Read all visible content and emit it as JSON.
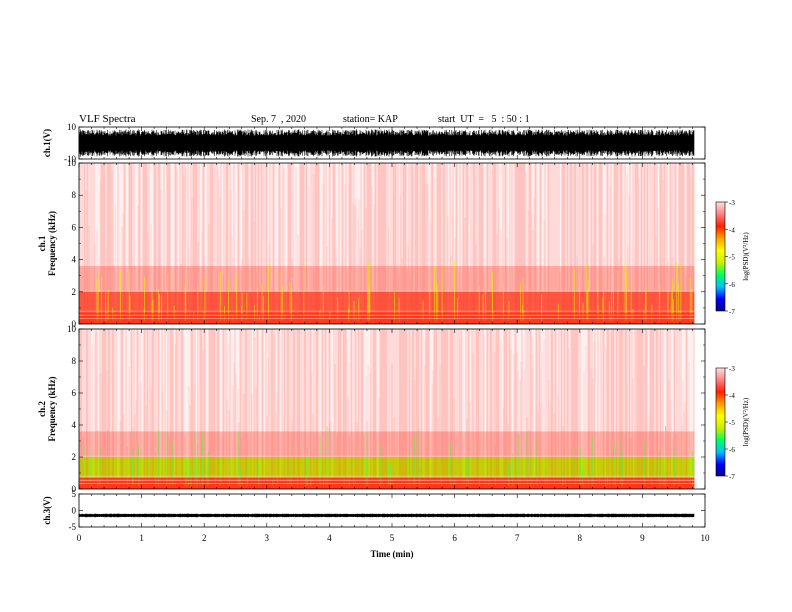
{
  "header": {
    "title": "VLF Spectra",
    "date": "Sep. 7  , 2020",
    "station": "station= KAP",
    "start": "start  UT  =   5  : 50 : 1"
  },
  "chart_data": [
    {
      "type": "line",
      "panel": "ch1-waveform",
      "ylabel": "ch.1(V)",
      "ylim": [
        -10,
        10
      ],
      "yticks": [
        10,
        -10
      ],
      "xlim": [
        0,
        10
      ],
      "x_end": 9.83,
      "description_of_values": "dense high-amplitude noise waveform, mostly within ±8 V"
    },
    {
      "type": "heatmap",
      "panel": "ch1-spectrogram",
      "ylabel": "ch.1\nFrequency  (kHz)",
      "ylim": [
        0,
        10
      ],
      "yticks": [
        0,
        2,
        4,
        6,
        8,
        10
      ],
      "xlim": [
        0,
        10
      ],
      "x_end": 9.83,
      "colorbar": {
        "label": "log(PSD)(V²/Hz)",
        "range": [
          -7,
          -3
        ],
        "ticks": [
          -3,
          -4,
          -5,
          -6,
          -7
        ]
      }
    },
    {
      "type": "heatmap",
      "panel": "ch2-spectrogram",
      "ylabel": "ch.2\nFrequency  (kHz)",
      "ylim": [
        0,
        10
      ],
      "yticks": [
        0,
        2,
        4,
        6,
        8,
        10
      ],
      "xlim": [
        0,
        10
      ],
      "x_end": 9.83,
      "colorbar": {
        "label": "log(PSD)(V²/Hz)",
        "range": [
          -7,
          -3
        ],
        "ticks": [
          -3,
          -4,
          -5,
          -6,
          -7
        ]
      }
    },
    {
      "type": "line",
      "panel": "ch3-waveform",
      "ylabel": "ch.3(V)",
      "ylim": [
        -5,
        5
      ],
      "yticks": [
        5,
        0,
        -5
      ],
      "xlim": [
        0,
        10
      ],
      "x_end": 9.83,
      "description_of_values": "flat band centred near -1.5 V with about ±0.5 V ripple"
    }
  ],
  "xaxis": {
    "label": "Time  (min)",
    "ticks": [
      0,
      1,
      2,
      3,
      4,
      5,
      6,
      7,
      8,
      9,
      10
    ]
  },
  "colors": {
    "background": "#ffffff",
    "waveform": "#000000",
    "colormap": [
      "#000080",
      "#0000ff",
      "#00c0ff",
      "#00ff60",
      "#c8f000",
      "#ffff00",
      "#ffa000",
      "#ff2000",
      "#ff8080",
      "#ffe0e0"
    ]
  }
}
